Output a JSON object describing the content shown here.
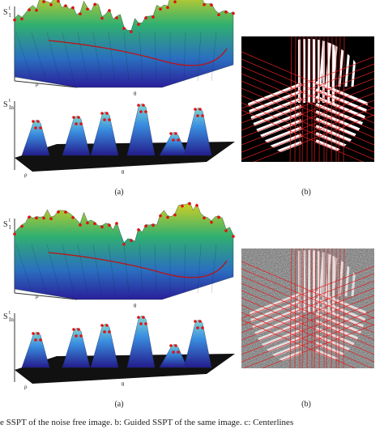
{
  "rows": [
    {
      "surfaces": [
        {
          "symbol": "S",
          "subscript": "I",
          "superscript": "t",
          "rho": "ρ",
          "theta": "θ"
        },
        {
          "symbol": "S",
          "subscript": "In",
          "superscript": "t",
          "rho": "ρ",
          "theta": "θ"
        }
      ],
      "label_a": "(a)",
      "label_b": "(b)"
    },
    {
      "surfaces": [
        {
          "symbol": "S",
          "subscript": "I",
          "superscript": "t",
          "rho": "ρ",
          "theta": "θ"
        },
        {
          "symbol": "S",
          "subscript": "In",
          "superscript": "t",
          "rho": "ρ",
          "theta": "θ"
        }
      ],
      "label_a": "(a)",
      "label_b": "(b)"
    }
  ],
  "caption": "e SSPT of the noise free image. b: Guided SSPT of the same image. c: Centerlines"
}
